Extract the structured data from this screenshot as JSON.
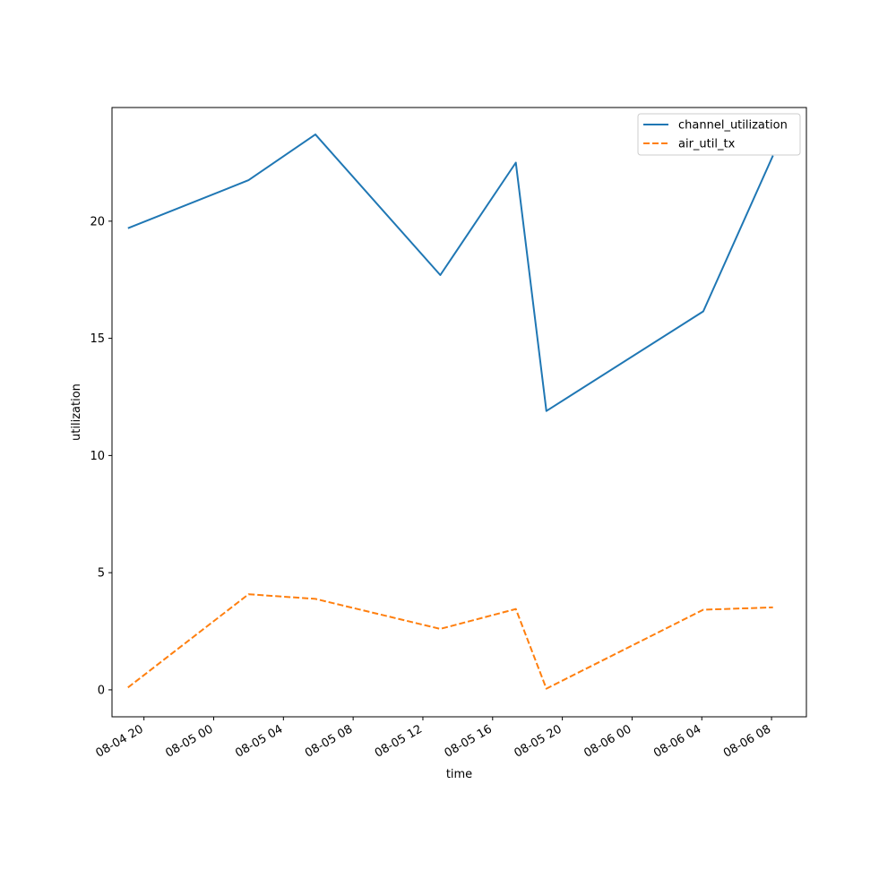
{
  "chart_data": {
    "type": "line",
    "title": "",
    "xlabel": "time",
    "ylabel": "utilization",
    "x_tick_labels": [
      "08-04 20",
      "08-05 00",
      "08-05 04",
      "08-05 08",
      "08-05 12",
      "08-05 16",
      "08-05 20",
      "08-06 00",
      "08-06 04",
      "08-06 08"
    ],
    "y_ticks": [
      0,
      5,
      10,
      15,
      20
    ],
    "xlim": [
      "08-04 18:10",
      "08-06 10:00"
    ],
    "ylim": [
      -1.15,
      24.85
    ],
    "grid": false,
    "legend": {
      "placement": "top-right"
    },
    "x": [
      "08-04 19:05",
      "08-05 02:00",
      "08-05 05:50",
      "08-05 13:00",
      "08-05 17:20",
      "08-05 19:05",
      "08-06 04:05",
      "08-06 08:05"
    ],
    "series": [
      {
        "name": "channel_utilization",
        "color": "#1f77b4",
        "dash": "solid",
        "values": [
          19.7,
          21.75,
          23.7,
          17.7,
          22.5,
          11.9,
          16.15,
          22.8
        ]
      },
      {
        "name": "air_util_tx",
        "color": "#ff7f0e",
        "dash": "dashed",
        "values": [
          0.1,
          4.08,
          3.88,
          2.6,
          3.45,
          0.05,
          3.42,
          3.52
        ]
      }
    ]
  }
}
